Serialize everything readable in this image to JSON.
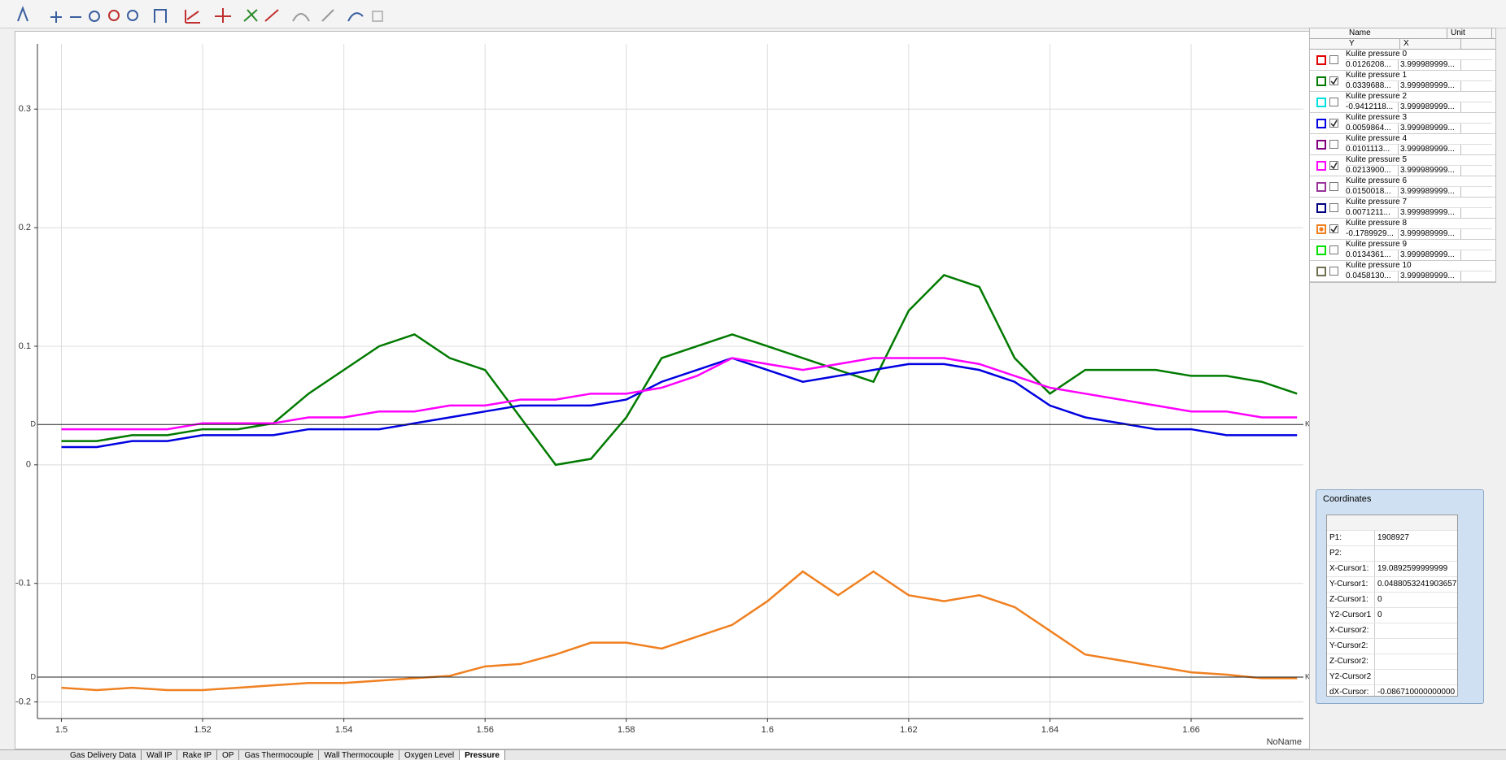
{
  "chart_data": {
    "type": "line",
    "x_label": "NoName",
    "x": [
      1.5,
      1.505,
      1.51,
      1.515,
      1.52,
      1.525,
      1.53,
      1.535,
      1.54,
      1.545,
      1.55,
      1.555,
      1.56,
      1.565,
      1.57,
      1.575,
      1.58,
      1.585,
      1.59,
      1.595,
      1.6,
      1.605,
      1.61,
      1.615,
      1.62,
      1.625,
      1.63,
      1.635,
      1.64,
      1.645,
      1.65,
      1.655,
      1.66,
      1.665,
      1.67,
      1.675
    ],
    "series": [
      {
        "channel": 1,
        "values": [
          0.02,
          0.02,
          0.025,
          0.025,
          0.03,
          0.03,
          0.035,
          0.06,
          0.08,
          0.1,
          0.11,
          0.09,
          0.08,
          0.04,
          0.0,
          0.005,
          0.04,
          0.09,
          0.1,
          0.11,
          0.1,
          0.09,
          0.08,
          0.07,
          0.13,
          0.16,
          0.15,
          0.09,
          0.06,
          0.08,
          0.08,
          0.08,
          0.075,
          0.075,
          0.07,
          0.06
        ]
      },
      {
        "channel": 3,
        "values": [
          0.015,
          0.015,
          0.02,
          0.02,
          0.025,
          0.025,
          0.025,
          0.03,
          0.03,
          0.03,
          0.035,
          0.04,
          0.045,
          0.05,
          0.05,
          0.05,
          0.055,
          0.07,
          0.08,
          0.09,
          0.08,
          0.07,
          0.075,
          0.08,
          0.085,
          0.085,
          0.08,
          0.07,
          0.05,
          0.04,
          0.035,
          0.03,
          0.03,
          0.025,
          0.025,
          0.025
        ]
      },
      {
        "channel": 5,
        "values": [
          0.03,
          0.03,
          0.03,
          0.03,
          0.035,
          0.035,
          0.035,
          0.04,
          0.04,
          0.045,
          0.045,
          0.05,
          0.05,
          0.055,
          0.055,
          0.06,
          0.06,
          0.065,
          0.075,
          0.09,
          0.085,
          0.08,
          0.085,
          0.09,
          0.09,
          0.09,
          0.085,
          0.075,
          0.065,
          0.06,
          0.055,
          0.05,
          0.045,
          0.045,
          0.04,
          0.04
        ]
      },
      {
        "channel": 8,
        "values": [
          -0.188,
          -0.19,
          -0.188,
          -0.19,
          -0.19,
          -0.188,
          -0.186,
          -0.184,
          -0.184,
          -0.182,
          -0.18,
          -0.178,
          -0.17,
          -0.168,
          -0.16,
          -0.15,
          -0.15,
          -0.155,
          -0.145,
          -0.135,
          -0.115,
          -0.09,
          -0.11,
          -0.09,
          -0.11,
          -0.115,
          -0.11,
          -0.12,
          -0.14,
          -0.16,
          -0.165,
          -0.17,
          -0.175,
          -0.177,
          -0.18,
          -0.18
        ]
      }
    ],
    "xlim": [
      1.4966,
      1.6759
    ],
    "xticks": [
      1.5,
      1.52,
      1.54,
      1.56,
      1.58,
      1.6,
      1.62,
      1.64,
      1.66
    ],
    "ylim": [
      -0.214,
      0.355
    ],
    "yticks": [
      -0.2,
      -0.1,
      0,
      0.1,
      0.2,
      0.3
    ],
    "grid": true,
    "cursors": [
      {
        "value": 0.034,
        "left": "D",
        "right": "K"
      },
      {
        "value": -0.179,
        "left": "D",
        "right": "K"
      }
    ]
  },
  "channel_panel": {
    "headers": [
      "Name",
      "Unit",
      "Y",
      "X"
    ],
    "rows": [
      {
        "name": "Kulite pressure 0",
        "y": "0.0126208...",
        "x": "3.999989999...",
        "color": "#e00000",
        "checked": false
      },
      {
        "name": "Kulite pressure 1",
        "y": "0.0339688...",
        "x": "3.999989999...",
        "color": "#007a00",
        "checked": true
      },
      {
        "name": "Kulite pressure 2",
        "y": "-0.9412118...",
        "x": "3.999989999...",
        "color": "#00e0e0",
        "checked": false
      },
      {
        "name": "Kulite pressure 3",
        "y": "0.0059864...",
        "x": "3.999989999...",
        "color": "#0000e0",
        "checked": true
      },
      {
        "name": "Kulite pressure 4",
        "y": "0.0101113...",
        "x": "3.999989999...",
        "color": "#800080",
        "checked": false
      },
      {
        "name": "Kulite pressure 5",
        "y": "0.0213900...",
        "x": "3.999989999...",
        "color": "#ff00ff",
        "checked": true
      },
      {
        "name": "Kulite pressure 6",
        "y": "0.0150018...",
        "x": "3.999989999...",
        "color": "#993399",
        "checked": false
      },
      {
        "name": "Kulite pressure 7",
        "y": "0.0071211...",
        "x": "3.999989999...",
        "color": "#000080",
        "checked": false
      },
      {
        "name": "Kulite pressure 8",
        "y": "-0.1789929...",
        "x": "3.999989999...",
        "color": "#f08020",
        "checked": true
      },
      {
        "name": "Kulite pressure 9",
        "y": "0.0134361...",
        "x": "3.999989999...",
        "color": "#00e000",
        "checked": false
      },
      {
        "name": "Kulite pressure 10",
        "y": "0.0458130...",
        "x": "3.999989999...",
        "color": "#707050",
        "checked": false
      }
    ]
  },
  "coordinates": {
    "title": "Coordinates",
    "rows": [
      {
        "label": "P1:",
        "value": "1908927"
      },
      {
        "label": "P2:"
      },
      {
        "label": "X-Cursor1:",
        "value": "19.0892599999999"
      },
      {
        "label": "Y-Cursor1:",
        "value": "0.0488053241903657"
      },
      {
        "label": "Z-Cursor1:",
        "value": "0"
      },
      {
        "label": "Y2-Cursor1",
        "value": "0"
      },
      {
        "label": "X-Cursor2:"
      },
      {
        "label": "Y-Cursor2:"
      },
      {
        "label": "Z-Cursor2:"
      },
      {
        "label": "Y2-Cursor2"
      },
      {
        "label": "dX-Cursor:",
        "value": "-0.086710000000000"
      }
    ]
  },
  "tabs": {
    "items": [
      "Gas Delivery Data",
      "Wall IP",
      "Rake IP",
      "OP",
      "Gas Thermocouple",
      "Wall Thermocouple",
      "Oxygen Level",
      "Pressure"
    ],
    "active": 7
  }
}
